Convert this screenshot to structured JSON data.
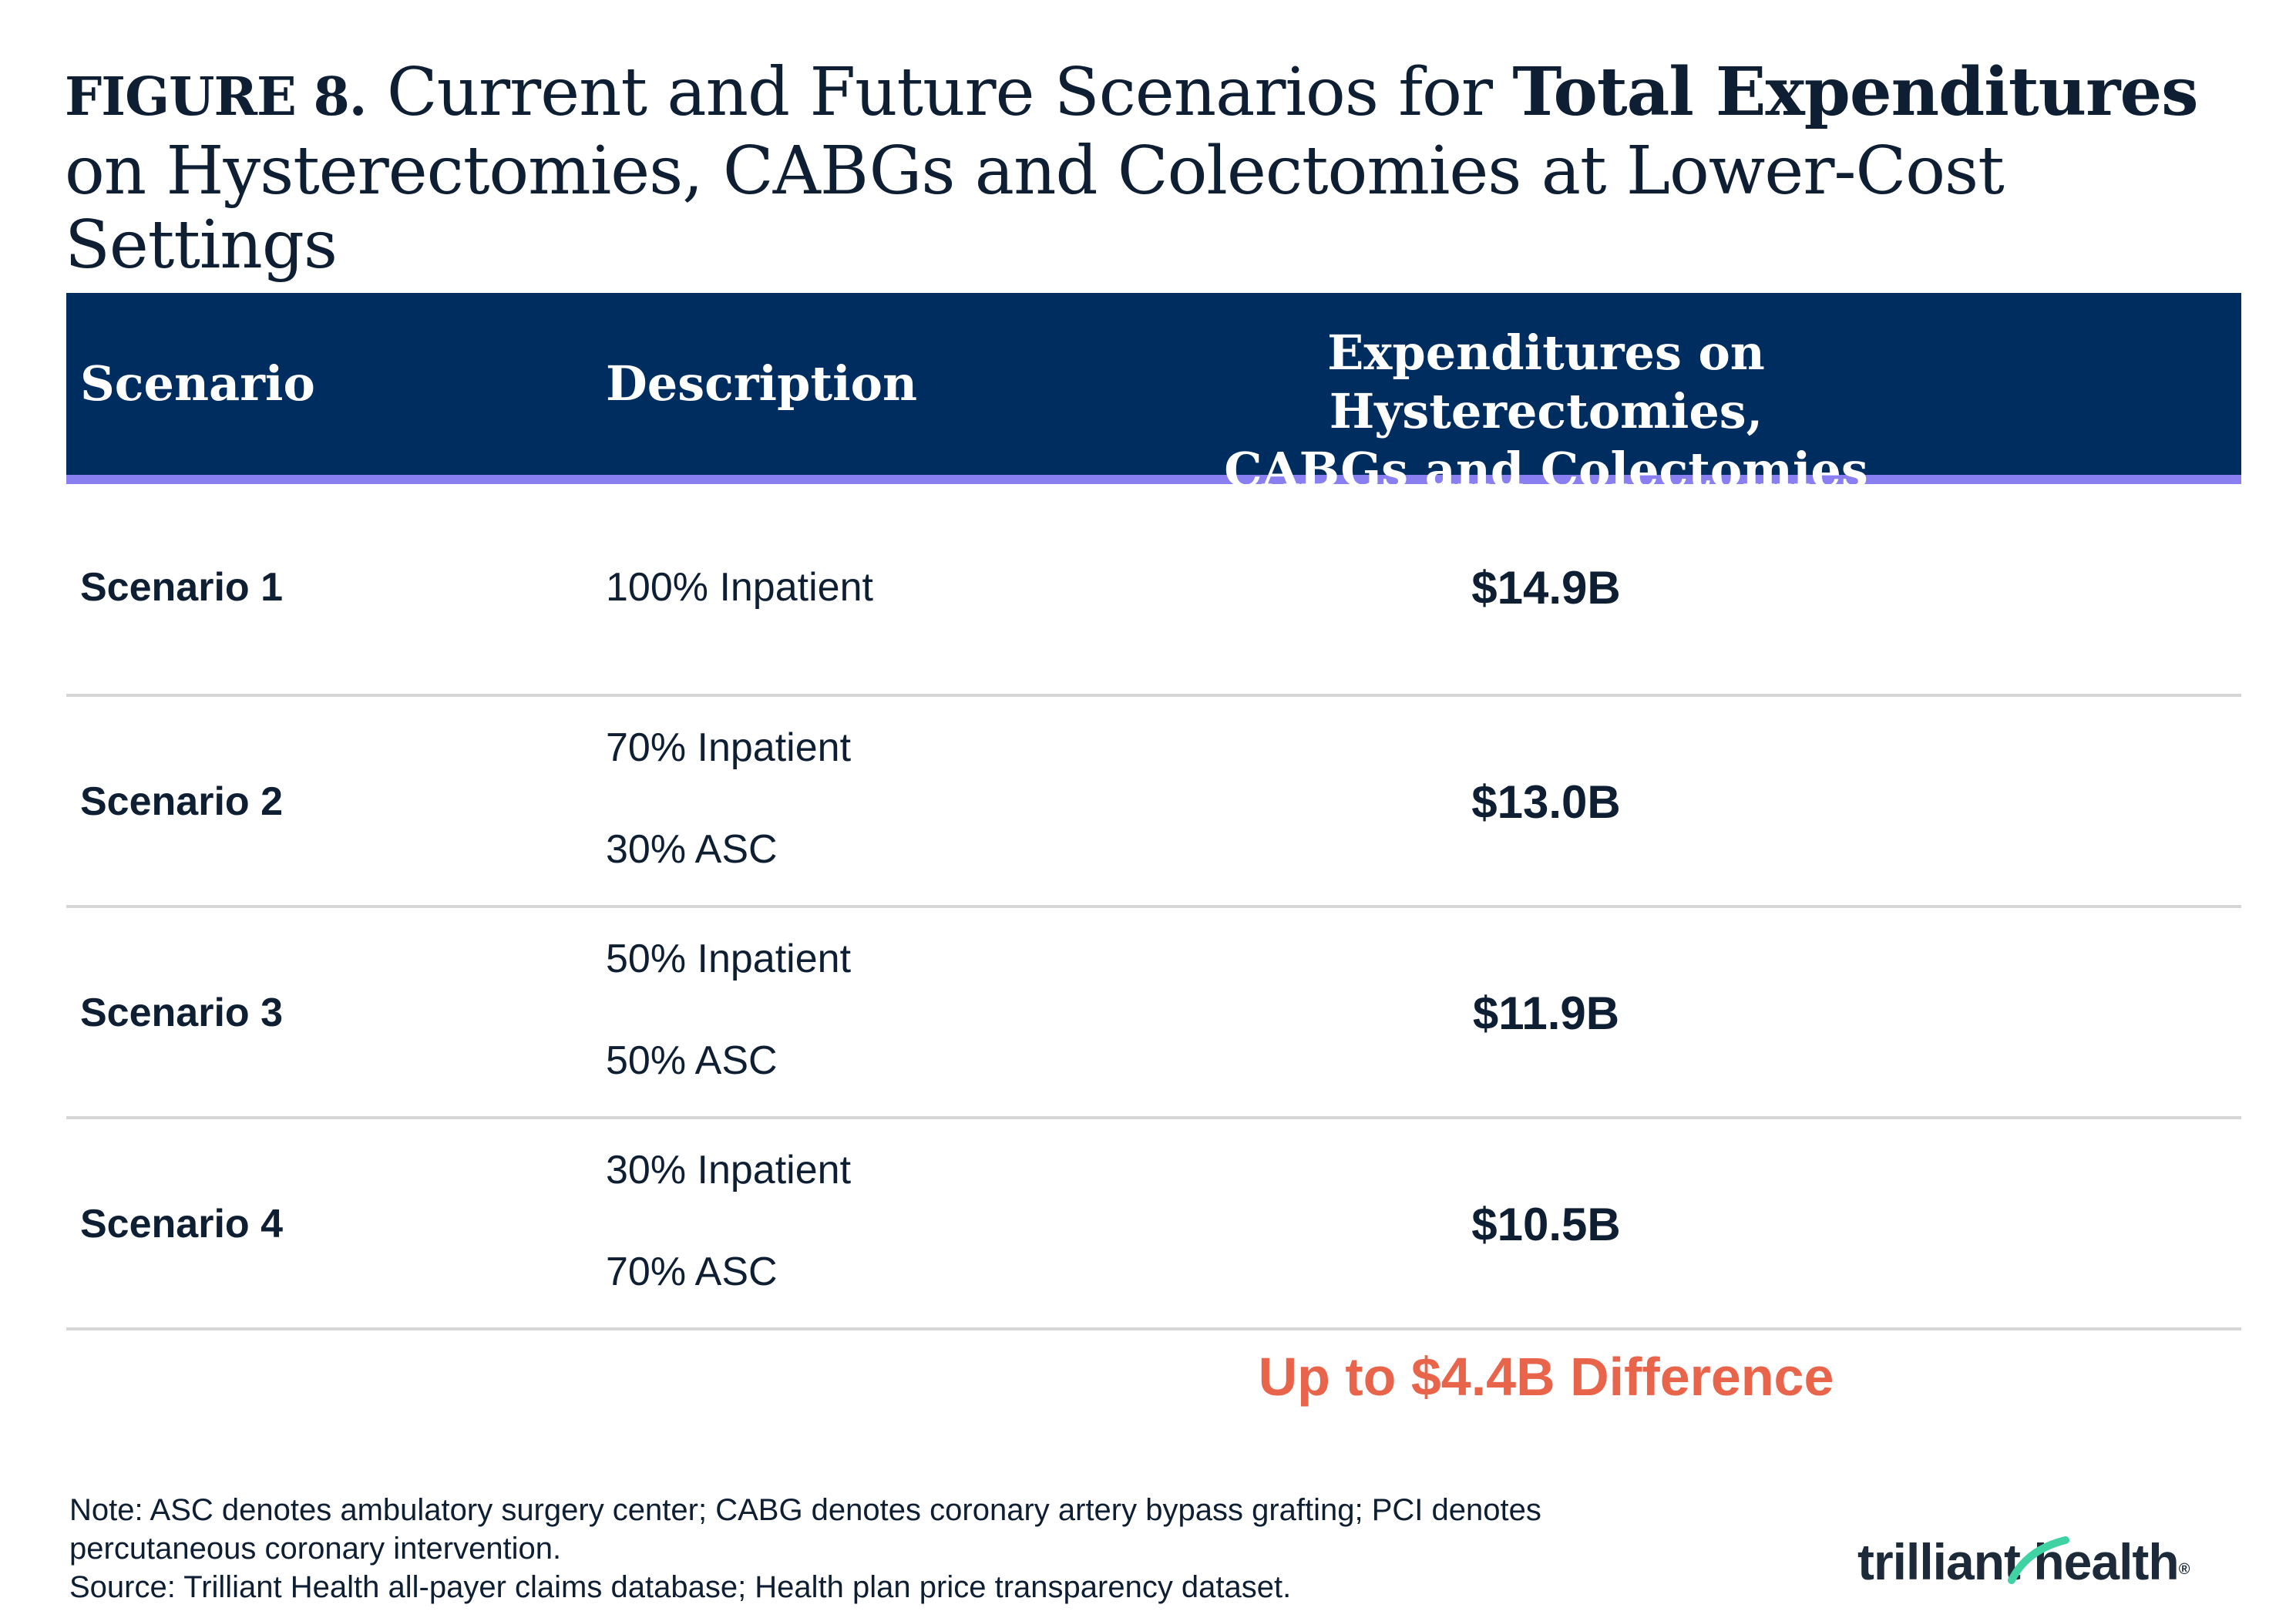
{
  "title": {
    "figure_label": "FIGURE 8.",
    "part1": "Current and Future Scenarios for ",
    "bold": "Total Expenditures",
    "part2": " on Hysterectomies, CABGs and Colectomies at Lower-Cost Settings"
  },
  "table": {
    "headers": {
      "scenario": "Scenario",
      "description": "Description",
      "expenditures_line1": "Expenditures on Hysterectomies,",
      "expenditures_line2": "CABGs and Colectomies"
    },
    "rows": [
      {
        "scenario": "Scenario 1",
        "description": [
          "100% Inpatient"
        ],
        "expenditures": "$14.9B"
      },
      {
        "scenario": "Scenario 2",
        "description": [
          "70% Inpatient",
          "30% ASC"
        ],
        "expenditures": "$13.0B"
      },
      {
        "scenario": "Scenario 3",
        "description": [
          "50% Inpatient",
          "50% ASC"
        ],
        "expenditures": "$11.9B"
      },
      {
        "scenario": "Scenario 4",
        "description": [
          "30% Inpatient",
          "70% ASC"
        ],
        "expenditures": "$10.5B"
      }
    ]
  },
  "difference_label": "Up to $4.4B Difference",
  "notes": {
    "line1": "Note: ASC denotes ambulatory surgery center; CABG denotes coronary artery bypass grafting; PCI denotes",
    "line2": "percutaneous coronary intervention.",
    "line3": "Source: Trilliant Health all-payer claims database; Health plan price transparency dataset."
  },
  "logo": {
    "text": "trilliant health",
    "registered": "®"
  },
  "colors": {
    "header_bg": "#002d5f",
    "header_accent": "#8a7ff0",
    "text": "#0f1f33",
    "highlight": "#e8644a",
    "divider": "#d6d6d6",
    "logo_mark": "#3fd3a4"
  }
}
